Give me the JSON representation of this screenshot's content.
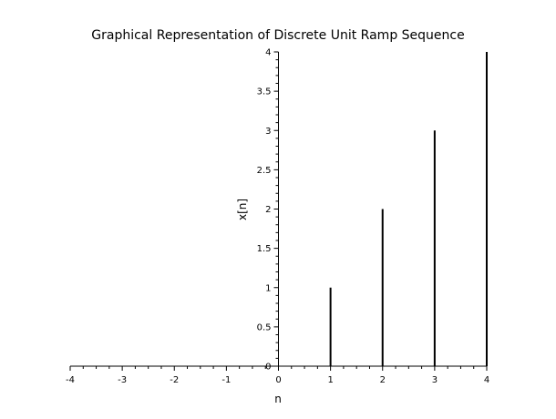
{
  "chart_data": {
    "type": "stem",
    "title": "Graphical Representation of Discrete Unit Ramp Sequence",
    "xlabel": "n",
    "ylabel": "x[n]",
    "xlim": [
      -4,
      4
    ],
    "ylim": [
      0,
      4
    ],
    "x_ticks": [
      "-4",
      "-3",
      "-2",
      "-1",
      "0",
      "1",
      "2",
      "3",
      "4"
    ],
    "y_ticks": [
      "0",
      "0.5",
      "1",
      "1.5",
      "2",
      "2.5",
      "3",
      "3.5",
      "4"
    ],
    "x": [
      -4,
      -3,
      -2,
      -1,
      0,
      1,
      2,
      3,
      4
    ],
    "values": [
      0,
      0,
      0,
      0,
      0,
      1,
      2,
      3,
      4
    ],
    "axis_style": "centered",
    "grid": false,
    "color": "#000000"
  }
}
